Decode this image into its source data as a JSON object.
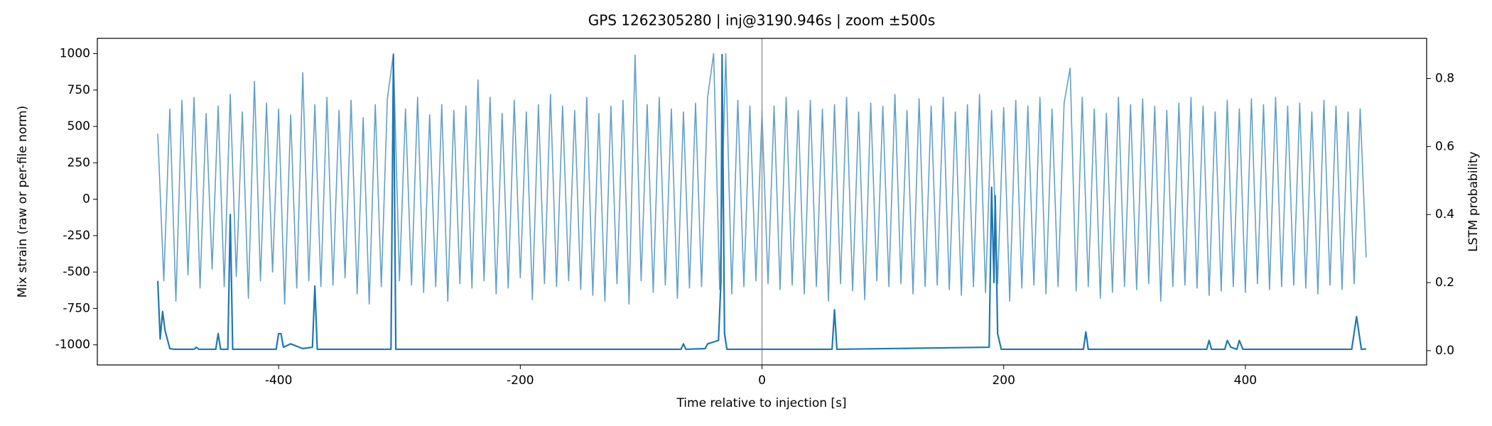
{
  "chart_data": {
    "type": "line",
    "title": "GPS 1262305280 | inj@3190.946s | zoom ±500s",
    "xlabel": "Time relative to injection [s]",
    "ylabel": "Mix strain (raw or per-file norm)",
    "y2label": "LSTM probability",
    "xlim": [
      -550,
      550
    ],
    "xticks": [
      -400,
      -200,
      0,
      200,
      400
    ],
    "ylim": [
      -1138,
      1105
    ],
    "yticks": [
      -1000,
      -750,
      -500,
      -250,
      0,
      250,
      500,
      750,
      1000
    ],
    "y2lim": [
      -0.042,
      0.918
    ],
    "y2ticks": [
      0.0,
      0.2,
      0.4,
      0.6,
      0.8
    ],
    "grid": false,
    "vline": {
      "x": 0,
      "color": "#999999"
    },
    "series": [
      {
        "color": "#1f77b4",
        "opacity": 0.7,
        "axis": "y",
        "x": [
          -500,
          -495,
          -490,
          -485,
          -480,
          -475,
          -470,
          -465,
          -460,
          -455,
          -450,
          -445,
          -440,
          -435,
          -430,
          -425,
          -420,
          -415,
          -410,
          -405,
          -400,
          -395,
          -390,
          -385,
          -380,
          -375,
          -370,
          -365,
          -360,
          -355,
          -350,
          -345,
          -340,
          -335,
          -330,
          -325,
          -320,
          -315,
          -310,
          -305,
          -300,
          -295,
          -290,
          -285,
          -280,
          -275,
          -270,
          -265,
          -260,
          -255,
          -250,
          -245,
          -240,
          -235,
          -230,
          -225,
          -220,
          -215,
          -210,
          -205,
          -200,
          -195,
          -190,
          -185,
          -180,
          -175,
          -170,
          -165,
          -160,
          -155,
          -150,
          -145,
          -140,
          -135,
          -130,
          -125,
          -120,
          -115,
          -110,
          -105,
          -100,
          -95,
          -90,
          -85,
          -80,
          -75,
          -70,
          -65,
          -60,
          -55,
          -50,
          -45,
          -40,
          -35,
          -30,
          -25,
          -20,
          -15,
          -10,
          -5,
          0,
          5,
          10,
          15,
          20,
          25,
          30,
          35,
          40,
          45,
          50,
          55,
          60,
          65,
          70,
          75,
          80,
          85,
          90,
          95,
          100,
          105,
          110,
          115,
          120,
          125,
          130,
          135,
          140,
          145,
          150,
          155,
          160,
          165,
          170,
          175,
          180,
          185,
          190,
          195,
          200,
          205,
          210,
          215,
          220,
          225,
          230,
          235,
          240,
          245,
          250,
          255,
          260,
          265,
          270,
          275,
          280,
          285,
          290,
          295,
          300,
          305,
          310,
          315,
          320,
          325,
          330,
          335,
          340,
          345,
          350,
          355,
          360,
          365,
          370,
          375,
          380,
          385,
          390,
          395,
          400,
          405,
          410,
          415,
          420,
          425,
          430,
          435,
          440,
          445,
          450,
          455,
          460,
          465,
          470,
          475,
          480,
          485,
          490,
          495,
          500
        ],
        "values": [
          450,
          -560,
          620,
          -700,
          680,
          -520,
          700,
          -610,
          590,
          -480,
          640,
          -600,
          720,
          -530,
          600,
          -680,
          810,
          -560,
          660,
          -500,
          620,
          -720,
          580,
          -610,
          870,
          -560,
          650,
          -600,
          700,
          -590,
          610,
          -540,
          680,
          -650,
          560,
          -720,
          650,
          -600,
          690,
          1000,
          -560,
          620,
          -590,
          700,
          -640,
          580,
          -600,
          650,
          -700,
          610,
          -580,
          640,
          -610,
          820,
          -560,
          700,
          -650,
          590,
          -610,
          680,
          -540,
          600,
          -690,
          650,
          -580,
          720,
          -600,
          640,
          -560,
          610,
          -620,
          700,
          -660,
          590,
          -700,
          640,
          -580,
          680,
          -720,
          990,
          -560,
          650,
          -640,
          700,
          -590,
          620,
          -680,
          600,
          -610,
          660,
          -600,
          700,
          1000,
          -620,
          1000,
          -650,
          680,
          -600,
          640,
          -560,
          600,
          -580,
          640,
          -620,
          700,
          -590,
          610,
          -650,
          680,
          -600,
          620,
          -700,
          650,
          -580,
          700,
          -630,
          600,
          -690,
          660,
          -560,
          640,
          -600,
          720,
          -580,
          610,
          -650,
          690,
          -600,
          640,
          -590,
          700,
          -620,
          600,
          -660,
          650,
          -600,
          720,
          -640,
          610,
          -580,
          630,
          -700,
          680,
          -610,
          640,
          -590,
          700,
          -650,
          620,
          -600,
          660,
          900,
          -630,
          700,
          -600,
          620,
          -680,
          590,
          -640,
          700,
          -600,
          650,
          -620,
          690,
          -580,
          640,
          -700,
          610,
          -600,
          660,
          -590,
          700,
          -610,
          640,
          -660,
          600,
          -630,
          680,
          -600,
          620,
          -640,
          690,
          -580,
          650,
          -620,
          700,
          -600,
          640,
          -590,
          660,
          -610,
          600,
          -650,
          680,
          -590,
          640,
          -620,
          600,
          -580,
          620,
          -400
        ]
      },
      {
        "color": "#1f77b4",
        "opacity": 1,
        "axis": "y2",
        "x": [
          -500,
          -498,
          -496,
          -494,
          -490,
          -486,
          -470,
          -468,
          -466,
          -452,
          -450,
          -448,
          -442,
          -440,
          -438,
          -402,
          -400,
          -398,
          -396,
          -390,
          -380,
          -372,
          -370,
          -368,
          -307,
          -305,
          -303,
          -67,
          -65,
          -63,
          -47,
          -45,
          -36,
          -34,
          -33,
          -31,
          -29,
          58,
          60,
          62,
          188,
          190,
          192,
          193,
          195,
          198,
          266,
          268,
          270,
          368,
          370,
          372,
          383,
          385,
          388,
          393,
          395,
          398,
          488,
          492,
          496,
          500
        ],
        "values": [
          0.205,
          0.034,
          0.115,
          0.06,
          0.006,
          0.004,
          0.004,
          0.01,
          0.004,
          0.004,
          0.05,
          0.004,
          0.004,
          0.4,
          0.004,
          0.004,
          0.05,
          0.05,
          0.01,
          0.02,
          0.006,
          0.01,
          0.19,
          0.004,
          0.004,
          0.87,
          0.004,
          0.004,
          0.02,
          0.004,
          0.006,
          0.02,
          0.03,
          0.2,
          0.87,
          0.05,
          0.004,
          0.004,
          0.12,
          0.004,
          0.01,
          0.48,
          0.2,
          0.455,
          0.05,
          0.004,
          0.004,
          0.055,
          0.004,
          0.004,
          0.03,
          0.004,
          0.004,
          0.03,
          0.01,
          0.004,
          0.03,
          0.004,
          0.004,
          0.1,
          0.004,
          0.005
        ]
      }
    ]
  }
}
